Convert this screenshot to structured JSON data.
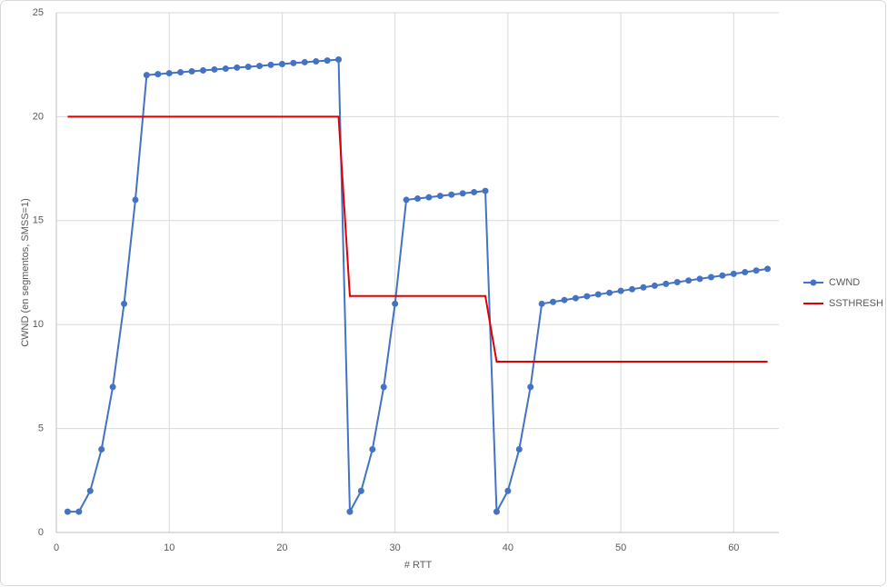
{
  "chart_data": {
    "type": "line",
    "x_label": "# RTT",
    "y_label": "CWND (en segmentos, SMSS=1)",
    "xlim": [
      0,
      64
    ],
    "xticks": [
      0,
      10,
      20,
      30,
      40,
      50,
      60
    ],
    "ylim": [
      0,
      25
    ],
    "yticks": [
      0,
      5,
      10,
      15,
      20,
      25
    ],
    "grid": true,
    "legend": "right",
    "series": [
      {
        "name": "CWND",
        "color": "#4472c4",
        "markers": true,
        "x": [
          1,
          2,
          3,
          4,
          5,
          6,
          7,
          8,
          9,
          10,
          11,
          12,
          13,
          14,
          15,
          16,
          17,
          18,
          19,
          20,
          21,
          22,
          23,
          24,
          25,
          26,
          27,
          28,
          29,
          30,
          31,
          32,
          33,
          34,
          35,
          36,
          37,
          38,
          39,
          40,
          41,
          42,
          43,
          44,
          45,
          46,
          47,
          48,
          49,
          50,
          51,
          52,
          53,
          54,
          55,
          56,
          57,
          58,
          59,
          60,
          61,
          62,
          63
        ],
        "values": [
          1,
          1,
          2,
          4,
          7,
          11,
          16,
          22,
          22.045,
          22.09,
          22.135,
          22.18,
          22.225,
          22.27,
          22.31,
          22.36,
          22.4,
          22.44,
          22.49,
          22.53,
          22.58,
          22.62,
          22.66,
          22.7,
          22.75,
          1,
          2,
          4,
          7,
          11,
          16,
          16.06,
          16.12,
          16.19,
          16.25,
          16.31,
          16.37,
          16.43,
          1,
          2,
          4,
          7,
          11,
          11.09,
          11.18,
          11.27,
          11.36,
          11.45,
          11.53,
          11.62,
          11.7,
          11.79,
          11.87,
          11.96,
          12.04,
          12.12,
          12.2,
          12.28,
          12.36,
          12.44,
          12.52,
          12.6,
          12.68
        ]
      },
      {
        "name": "SSTHRESH",
        "color": "#e00000",
        "markers": false,
        "x": [
          1,
          25,
          26,
          38,
          39,
          63
        ],
        "values": [
          20,
          20,
          11.375,
          11.375,
          8.215,
          8.215
        ]
      }
    ]
  }
}
